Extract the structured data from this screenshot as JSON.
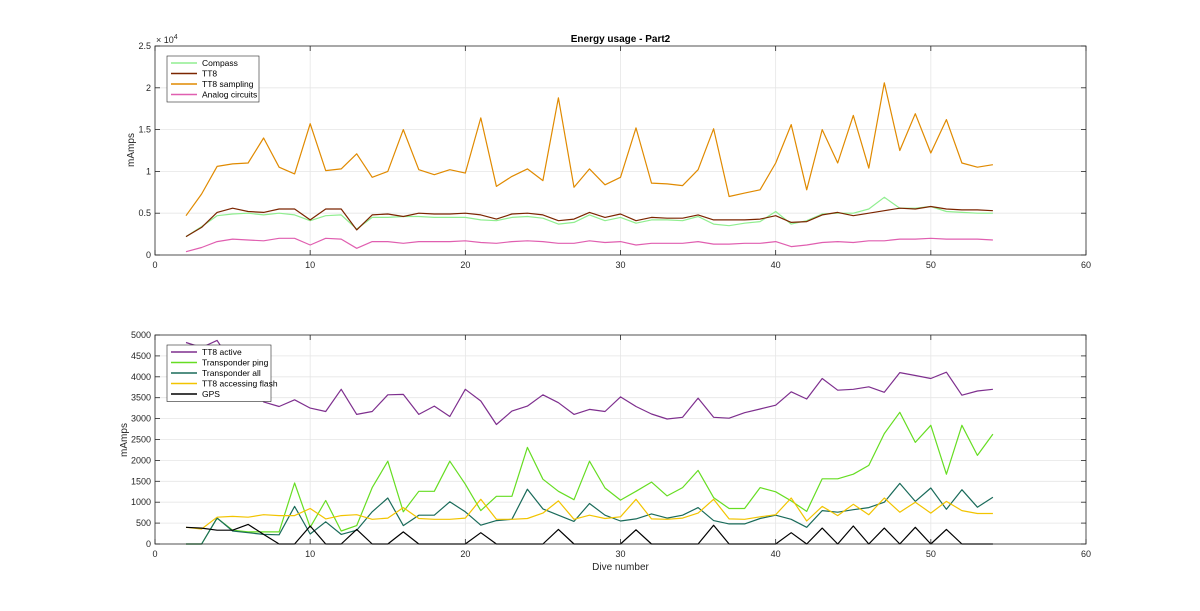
{
  "chart_data": [
    {
      "type": "line",
      "title": "Energy usage - Part2",
      "xlabel": "",
      "ylabel": "mAmps",
      "xlim": [
        0,
        60
      ],
      "ylim": [
        0,
        25000
      ],
      "xticks": [
        0,
        10,
        20,
        30,
        40,
        50,
        60
      ],
      "yticks": [
        0,
        5000,
        10000,
        15000,
        20000,
        25000
      ],
      "ytick_labels": [
        "0",
        "0.5",
        "1",
        "1.5",
        "2",
        "2.5"
      ],
      "exponent_label": "× 10",
      "exponent_power": "4",
      "grid": true,
      "legend_position": "top-left",
      "x": [
        2,
        3,
        4,
        5,
        6,
        7,
        8,
        9,
        10,
        11,
        12,
        13,
        14,
        15,
        16,
        17,
        18,
        19,
        20,
        21,
        22,
        23,
        24,
        25,
        26,
        27,
        28,
        29,
        30,
        31,
        32,
        33,
        34,
        35,
        36,
        37,
        38,
        39,
        40,
        41,
        42,
        43,
        44,
        45,
        46,
        47,
        48,
        49,
        50,
        51,
        52,
        53,
        54
      ],
      "series": [
        {
          "name": "Compass",
          "color": "#90ee90",
          "values": [
            2200,
            3400,
            4700,
            4900,
            5000,
            4800,
            5000,
            4800,
            4100,
            4700,
            4800,
            3100,
            4500,
            4500,
            4600,
            4600,
            4500,
            4500,
            4500,
            4200,
            4100,
            4500,
            4600,
            4400,
            3700,
            3900,
            4800,
            4100,
            4500,
            3800,
            4200,
            4200,
            4100,
            4600,
            3700,
            3500,
            3800,
            4000,
            5200,
            3700,
            4100,
            4900,
            5000,
            5000,
            5500,
            6900,
            5600,
            5600,
            5800,
            5200,
            5100,
            5000,
            5000
          ]
        },
        {
          "name": "TT8",
          "color": "#7b2500",
          "values": [
            2200,
            3300,
            5100,
            5600,
            5200,
            5100,
            5500,
            5500,
            4200,
            5500,
            5500,
            3000,
            4800,
            4900,
            4600,
            5000,
            4900,
            4900,
            5000,
            4800,
            4300,
            4900,
            5000,
            4800,
            4100,
            4300,
            5100,
            4500,
            4900,
            4100,
            4500,
            4400,
            4400,
            4800,
            4200,
            4200,
            4200,
            4300,
            4700,
            3900,
            4000,
            4800,
            5100,
            4700,
            5000,
            5300,
            5600,
            5500,
            5800,
            5500,
            5400,
            5400,
            5300
          ]
        },
        {
          "name": "TT8 sampling",
          "color": "#e08a00",
          "values": [
            4700,
            7300,
            10600,
            10900,
            11000,
            14000,
            10500,
            9700,
            15700,
            10100,
            10300,
            12100,
            9300,
            10000,
            15000,
            10200,
            9600,
            10200,
            9800,
            16400,
            8200,
            9400,
            10300,
            8900,
            18800,
            8100,
            10300,
            8400,
            9300,
            15200,
            8600,
            8500,
            8300,
            10200,
            15100,
            7000,
            7400,
            7800,
            11000,
            15600,
            7800,
            15000,
            11000,
            16700,
            10400,
            20600,
            12500,
            16900,
            12200,
            16200,
            11000,
            10500,
            10800
          ]
        },
        {
          "name": "Analog circuits",
          "color": "#e05fb0",
          "values": [
            400,
            900,
            1600,
            1900,
            1800,
            1700,
            2000,
            2000,
            1200,
            2000,
            1900,
            800,
            1600,
            1600,
            1400,
            1600,
            1600,
            1600,
            1700,
            1500,
            1400,
            1600,
            1700,
            1600,
            1400,
            1400,
            1700,
            1500,
            1600,
            1200,
            1400,
            1400,
            1400,
            1600,
            1300,
            1300,
            1400,
            1400,
            1600,
            1000,
            1200,
            1500,
            1600,
            1500,
            1700,
            1700,
            1900,
            1900,
            2000,
            1900,
            1900,
            1900,
            1800
          ]
        }
      ]
    },
    {
      "type": "line",
      "title": "",
      "xlabel": "Dive number",
      "ylabel": "mAmps",
      "xlim": [
        0,
        60
      ],
      "ylim": [
        0,
        5000
      ],
      "xticks": [
        0,
        10,
        20,
        30,
        40,
        50,
        60
      ],
      "yticks": [
        0,
        500,
        1000,
        1500,
        2000,
        2500,
        3000,
        3500,
        4000,
        4500,
        5000
      ],
      "ytick_labels": [
        "0",
        "500",
        "1000",
        "1500",
        "2000",
        "2500",
        "3000",
        "3500",
        "4000",
        "4500",
        "5000"
      ],
      "grid": true,
      "legend_position": "top-left",
      "x": [
        2,
        3,
        4,
        5,
        6,
        7,
        8,
        9,
        10,
        11,
        12,
        13,
        14,
        15,
        16,
        17,
        18,
        19,
        20,
        21,
        22,
        23,
        24,
        25,
        26,
        27,
        28,
        29,
        30,
        31,
        32,
        33,
        34,
        35,
        36,
        37,
        38,
        39,
        40,
        41,
        42,
        43,
        44,
        45,
        46,
        47,
        48,
        49,
        50,
        51,
        52,
        53,
        54
      ],
      "series": [
        {
          "name": "TT8 active",
          "color": "#7e2f8e",
          "values": [
            4820,
            4700,
            4870,
            4300,
            3900,
            3400,
            3290,
            3450,
            3250,
            3170,
            3700,
            3100,
            3170,
            3570,
            3580,
            3100,
            3300,
            3050,
            3700,
            3420,
            2860,
            3180,
            3300,
            3570,
            3380,
            3100,
            3220,
            3170,
            3520,
            3290,
            3110,
            2990,
            3030,
            3490,
            3030,
            3010,
            3140,
            3230,
            3320,
            3640,
            3470,
            3960,
            3680,
            3700,
            3760,
            3630,
            4100,
            4030,
            3960,
            4110,
            3560,
            3660,
            3700
          ]
        },
        {
          "name": "Transponder ping",
          "color": "#66dd22",
          "values": [
            0,
            0,
            620,
            330,
            290,
            290,
            290,
            1460,
            400,
            1040,
            310,
            440,
            1350,
            1980,
            770,
            1260,
            1260,
            1980,
            1430,
            800,
            1140,
            1140,
            2310,
            1550,
            1260,
            1060,
            1980,
            1340,
            1050,
            1260,
            1480,
            1150,
            1350,
            1760,
            1110,
            850,
            850,
            1350,
            1250,
            1030,
            780,
            1560,
            1560,
            1670,
            1880,
            2640,
            3150,
            2430,
            2840,
            1670,
            2840,
            2120,
            2630
          ]
        },
        {
          "name": "Transponder all",
          "color": "#1a6b5a",
          "values": [
            0,
            0,
            620,
            310,
            270,
            230,
            220,
            900,
            240,
            530,
            230,
            330,
            770,
            1100,
            440,
            690,
            690,
            1010,
            770,
            450,
            560,
            590,
            1310,
            840,
            690,
            540,
            970,
            690,
            550,
            600,
            720,
            620,
            690,
            870,
            560,
            480,
            480,
            610,
            690,
            590,
            400,
            800,
            760,
            820,
            870,
            1000,
            1450,
            1020,
            1340,
            830,
            1300,
            880,
            1120
          ]
        },
        {
          "name": "TT8 accessing flash",
          "color": "#f2c400",
          "values": [
            400,
            360,
            640,
            660,
            640,
            700,
            680,
            680,
            850,
            600,
            680,
            700,
            590,
            620,
            870,
            610,
            590,
            590,
            620,
            1070,
            590,
            590,
            610,
            740,
            1030,
            590,
            690,
            610,
            650,
            1070,
            600,
            590,
            620,
            740,
            1070,
            600,
            590,
            650,
            700,
            1100,
            550,
            900,
            680,
            950,
            700,
            1100,
            760,
            1000,
            740,
            1020,
            800,
            730,
            730
          ]
        },
        {
          "name": "GPS",
          "color": "#000000",
          "values": [
            400,
            380,
            330,
            330,
            470,
            230,
            0,
            0,
            430,
            0,
            0,
            350,
            0,
            0,
            290,
            0,
            0,
            0,
            0,
            270,
            0,
            0,
            0,
            0,
            350,
            0,
            0,
            0,
            0,
            340,
            0,
            0,
            0,
            0,
            450,
            0,
            0,
            0,
            0,
            270,
            0,
            380,
            0,
            430,
            0,
            380,
            0,
            400,
            0,
            350,
            0,
            0,
            0
          ]
        }
      ]
    }
  ]
}
